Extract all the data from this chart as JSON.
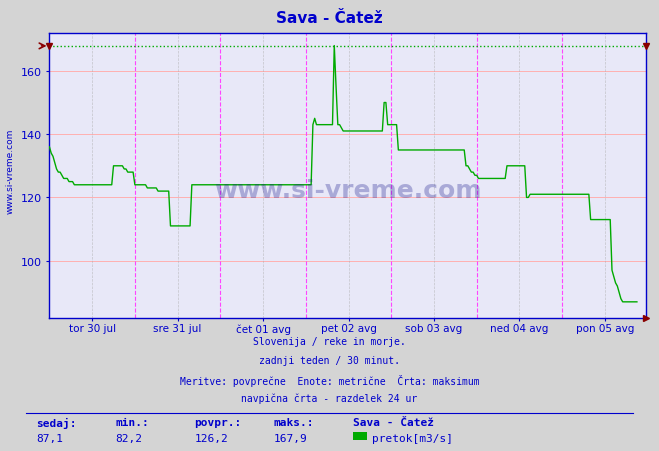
{
  "title": "Sava - Čatež",
  "title_color": "#0000cc",
  "bg_color": "#d4d4d4",
  "plot_bg_color": "#e8e8f8",
  "grid_color_h": "#ffb0b0",
  "grid_color_v_major": "#ff44ff",
  "grid_color_v_minor": "#aaaaaa",
  "line_color": "#00aa00",
  "max_line_color": "#00aa00",
  "axis_color": "#0000cc",
  "tick_color": "#0000cc",
  "border_color": "#0000cc",
  "xlabel_labels": [
    "tor 30 jul",
    "sre 31 jul",
    "čet 01 avg",
    "pet 02 avg",
    "sob 03 avg",
    "ned 04 avg",
    "pon 05 avg"
  ],
  "yticks": [
    100,
    120,
    140,
    160
  ],
  "ymin": 82,
  "ymax": 172,
  "max_value": 167.9,
  "n_points": 336,
  "footer_lines": [
    "Slovenija / reke in morje.",
    "zadnji teden / 30 minut.",
    "Meritve: povprečne  Enote: metrične  Črta: maksimum",
    "navpična črta - razdelek 24 ur"
  ],
  "stats_labels": [
    "sedaj:",
    "min.:",
    "povpr.:",
    "maks.:"
  ],
  "stats_values": [
    "87,1",
    "82,2",
    "126,2",
    "167,9"
  ],
  "legend_label": "pretok[m3/s]",
  "legend_title": "Sava - Čatež",
  "watermark": "www.si-vreme.com",
  "watermark_color": "#1a1a8c",
  "series": [
    136,
    134,
    133,
    131,
    129,
    128,
    128,
    127,
    126,
    126,
    126,
    125,
    125,
    125,
    124,
    124,
    124,
    124,
    124,
    124,
    124,
    124,
    124,
    124,
    124,
    124,
    124,
    124,
    124,
    124,
    124,
    124,
    124,
    124,
    124,
    124,
    130,
    130,
    130,
    130,
    130,
    130,
    129,
    129,
    128,
    128,
    128,
    128,
    124,
    124,
    124,
    124,
    124,
    124,
    124,
    123,
    123,
    123,
    123,
    123,
    123,
    122,
    122,
    122,
    122,
    122,
    122,
    122,
    111,
    111,
    111,
    111,
    111,
    111,
    111,
    111,
    111,
    111,
    111,
    111,
    124,
    124,
    124,
    124,
    124,
    124,
    124,
    124,
    124,
    124,
    124,
    124,
    124,
    124,
    124,
    124,
    124,
    124,
    124,
    124,
    124,
    124,
    124,
    124,
    124,
    124,
    124,
    124,
    124,
    124,
    124,
    124,
    124,
    124,
    124,
    124,
    124,
    124,
    124,
    124,
    124,
    124,
    124,
    124,
    124,
    124,
    124,
    124,
    124,
    124,
    124,
    124,
    124,
    124,
    124,
    124,
    124,
    124,
    124,
    124,
    124,
    124,
    124,
    124,
    124,
    124,
    124,
    124,
    143,
    145,
    143,
    143,
    143,
    143,
    143,
    143,
    143,
    143,
    143,
    143,
    168,
    155,
    143,
    143,
    142,
    141,
    141,
    141,
    141,
    141,
    141,
    141,
    141,
    141,
    141,
    141,
    141,
    141,
    141,
    141,
    141,
    141,
    141,
    141,
    141,
    141,
    141,
    141,
    150,
    150,
    143,
    143,
    143,
    143,
    143,
    143,
    135,
    135,
    135,
    135,
    135,
    135,
    135,
    135,
    135,
    135,
    135,
    135,
    135,
    135,
    135,
    135,
    135,
    135,
    135,
    135,
    135,
    135,
    135,
    135,
    135,
    135,
    135,
    135,
    135,
    135,
    135,
    135,
    135,
    135,
    135,
    135,
    135,
    135,
    130,
    130,
    129,
    128,
    128,
    127,
    127,
    126,
    126,
    126,
    126,
    126,
    126,
    126,
    126,
    126,
    126,
    126,
    126,
    126,
    126,
    126,
    126,
    130,
    130,
    130,
    130,
    130,
    130,
    130,
    130,
    130,
    130,
    130,
    120,
    120,
    121,
    121,
    121,
    121,
    121,
    121,
    121,
    121,
    121,
    121,
    121,
    121,
    121,
    121,
    121,
    121,
    121,
    121,
    121,
    121,
    121,
    121,
    121,
    121,
    121,
    121,
    121,
    121,
    121,
    121,
    121,
    121,
    121,
    121,
    113,
    113,
    113,
    113,
    113,
    113,
    113,
    113,
    113,
    113,
    113,
    113,
    97,
    95,
    93,
    92,
    90,
    88,
    87,
    87,
    87,
    87,
    87,
    87,
    87,
    87,
    87
  ]
}
